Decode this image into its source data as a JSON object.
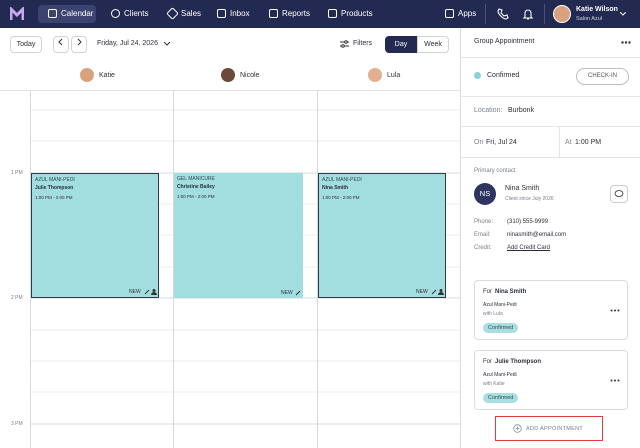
{
  "nav": {
    "items": [
      "Calendar",
      "Clients",
      "Sales",
      "Inbox",
      "Reports",
      "Products"
    ],
    "apps": "Apps",
    "user": {
      "name": "Katie Wilson",
      "salon": "Salon Azul"
    }
  },
  "toolbar": {
    "today": "Today",
    "date": "Friday, Jul 24, 2026",
    "filters": "Filters",
    "views": [
      "Day",
      "Week"
    ]
  },
  "staff": [
    "Katie",
    "Nicole",
    "Lula"
  ],
  "time_labels": [
    "1 PM",
    "2 PM",
    "3 PM"
  ],
  "appointments": [
    {
      "service": "AZUL MANI-PEDI",
      "client": "Julie Thompson",
      "time": "1:00 PM - 2:00 PM",
      "tag": "NEW"
    },
    {
      "service": "GEL MANICURE",
      "client": "Christine Bailey",
      "time": "1:00 PM - 2:00 PM",
      "tag": "NEW"
    },
    {
      "service": "AZUL MANI-PEDI",
      "client": "Nina Smith",
      "time": "1:00 PM - 2:00 PM",
      "tag": "NEW"
    }
  ],
  "panel": {
    "title": "Group Appointment",
    "status": "Confirmed",
    "check_in": "CHECK-IN",
    "location_label": "Location:",
    "location": "Burbonk",
    "date_label": "On",
    "date": "Fri, Jul 24",
    "time_label": "At",
    "time": "1:00 PM",
    "contact_heading": "Primary contact",
    "contact": {
      "initials": "NS",
      "name": "Nina Smith",
      "since": "Client since July 2026",
      "fields": [
        {
          "label": "Phone:",
          "value": "(310) 555-9999"
        },
        {
          "label": "Email:",
          "value": "ninasmith@email.com"
        },
        {
          "label": "Credit:",
          "value": "Add Credit Card"
        }
      ]
    },
    "bookings": [
      {
        "for": "For",
        "client": "Nina Smith",
        "service": "Azul Mani-Pedi",
        "with": "with Lula",
        "status": "Confirmed"
      },
      {
        "for": "For",
        "client": "Julie Thompson",
        "service": "Azul Mani-Pedi",
        "with": "with Katie",
        "status": "Confirmed"
      }
    ],
    "add": "ADD APPOINTMENT"
  }
}
